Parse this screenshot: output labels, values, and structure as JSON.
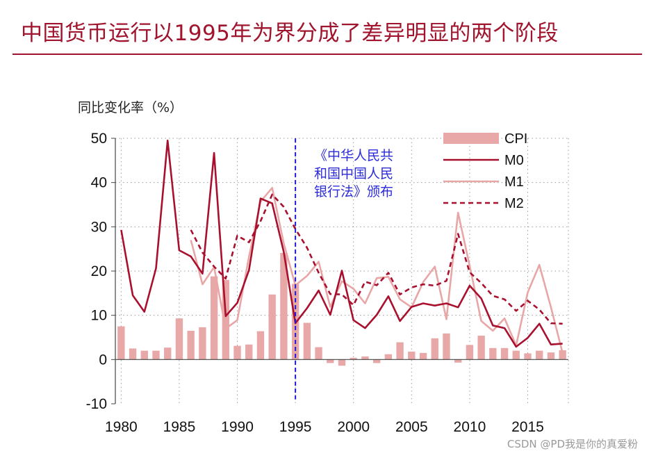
{
  "header": {
    "title": "中国货币运行以1995年为界分成了差异明显的两个阶段"
  },
  "watermark": "CSDN @PD我是你的真爱粉",
  "colors": {
    "title": "#a0142e",
    "cpi": "#e8a8a8",
    "m0": "#a8102e",
    "m1": "#e8a6a6",
    "m2": "#a8102e",
    "event_line": "#1c1cd6"
  },
  "chart_data": {
    "type": "bar+line",
    "ylabel": "同比变化率（%）",
    "xlim": [
      1979.5,
      2018.5
    ],
    "ylim": [
      -10,
      50
    ],
    "yticks": [
      "-10",
      "0",
      "10",
      "20",
      "30",
      "40",
      "50"
    ],
    "xticks": [
      "1980",
      "1985",
      "1990",
      "1995",
      "2000",
      "2005",
      "2010",
      "2015"
    ],
    "grid": "dotted",
    "legend_position": "top-right",
    "x": [
      1980,
      1981,
      1982,
      1983,
      1984,
      1985,
      1986,
      1987,
      1988,
      1989,
      1990,
      1991,
      1992,
      1993,
      1994,
      1995,
      1996,
      1997,
      1998,
      1999,
      2000,
      2001,
      2002,
      2003,
      2004,
      2005,
      2006,
      2007,
      2008,
      2009,
      2010,
      2011,
      2012,
      2013,
      2014,
      2015,
      2016,
      2017,
      2018
    ],
    "series": [
      {
        "name": "CPI",
        "kind": "bar",
        "values": [
          7.5,
          2.5,
          2.0,
          2.0,
          2.7,
          9.3,
          6.5,
          7.3,
          18.8,
          18.0,
          3.1,
          3.4,
          6.4,
          14.7,
          24.1,
          17.1,
          8.3,
          2.8,
          -0.8,
          -1.4,
          0.4,
          0.7,
          -0.8,
          1.2,
          3.9,
          1.8,
          1.5,
          4.8,
          5.9,
          -0.7,
          3.3,
          5.4,
          2.6,
          2.6,
          2.0,
          1.4,
          2.0,
          1.6,
          2.1
        ]
      },
      {
        "name": "M0",
        "kind": "line",
        "values": [
          29.3,
          14.5,
          10.8,
          20.6,
          49.5,
          24.7,
          23.3,
          19.4,
          46.7,
          9.8,
          12.8,
          20.2,
          36.4,
          35.3,
          24.3,
          8.2,
          11.6,
          15.6,
          10.1,
          20.1,
          8.9,
          7.1,
          10.1,
          14.3,
          8.7,
          11.9,
          12.7,
          12.2,
          12.7,
          11.8,
          16.7,
          13.8,
          7.7,
          7.1,
          2.9,
          4.9,
          8.1,
          3.4,
          3.6
        ]
      },
      {
        "name": "M1",
        "kind": "line",
        "values": [
          null,
          null,
          null,
          null,
          null,
          null,
          27.0,
          17.0,
          20.9,
          7.0,
          8.9,
          23.2,
          35.7,
          38.8,
          26.2,
          16.8,
          18.9,
          22.1,
          11.9,
          17.7,
          16.0,
          12.7,
          18.4,
          18.7,
          13.6,
          11.8,
          17.5,
          21.0,
          9.1,
          33.2,
          21.2,
          8.7,
          6.5,
          9.3,
          3.2,
          15.2,
          21.4,
          11.8,
          1.5
        ]
      },
      {
        "name": "M2",
        "kind": "line",
        "style": "dashed",
        "values": [
          null,
          null,
          null,
          null,
          null,
          null,
          29.3,
          24.2,
          21.0,
          18.3,
          28.0,
          26.5,
          31.3,
          37.3,
          34.5,
          29.5,
          25.3,
          19.6,
          14.8,
          14.7,
          12.3,
          17.6,
          16.8,
          19.6,
          14.7,
          16.3,
          17.0,
          16.7,
          17.8,
          28.4,
          19.7,
          17.3,
          14.4,
          13.6,
          11.0,
          13.3,
          11.3,
          8.2,
          8.1
        ]
      }
    ],
    "event": {
      "x": 1995,
      "label_lines": [
        "《中华人民共",
        "和国中国人民",
        "银行法》颁布"
      ]
    }
  }
}
